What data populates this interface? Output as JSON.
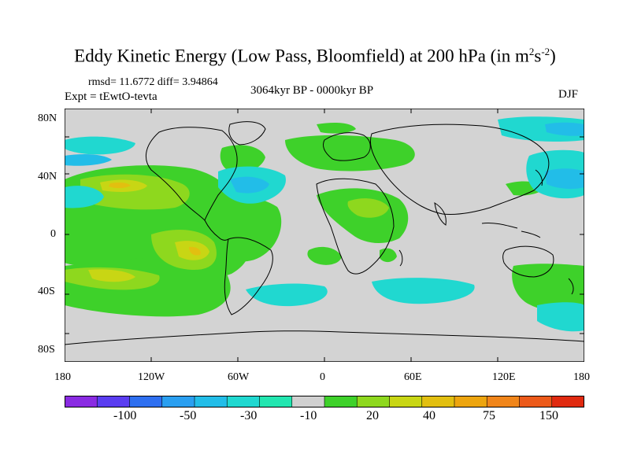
{
  "title": {
    "main": "Eddy Kinetic Energy (Low Pass, Bloomfield) at 200 hPa (in m",
    "sup1": "2",
    "mid": "s",
    "sup2": "-2",
    "end": ")"
  },
  "stats": "rmsd= 11.6772 diff= 3.94864",
  "experiment": "Expt = tEwtO-tevta",
  "period": "3064kyr BP - 0000kyr BP",
  "season": "DJF",
  "axes": {
    "y_ticks": [
      "80N",
      "40N",
      "0",
      "40S",
      "80S"
    ],
    "x_ticks": [
      "180",
      "120W",
      "60W",
      "0",
      "60E",
      "120E",
      "180"
    ]
  },
  "colorbar": {
    "colors": [
      "#8a2be2",
      "#5a3df0",
      "#2e6ff0",
      "#2a9ff0",
      "#22bde8",
      "#20d8d0",
      "#22e6b0",
      "#d0d0d0",
      "#3ed12a",
      "#8ed81e",
      "#c8d614",
      "#e2bf10",
      "#eda50f",
      "#f0851a",
      "#ec5a1a",
      "#e02a10"
    ],
    "labels": [
      "-100",
      "-50",
      "-30",
      "-10",
      "20",
      "40",
      "75",
      "150"
    ]
  },
  "map_colors": {
    "ocean_background": "#d3d3d3",
    "coast": "#000000"
  }
}
